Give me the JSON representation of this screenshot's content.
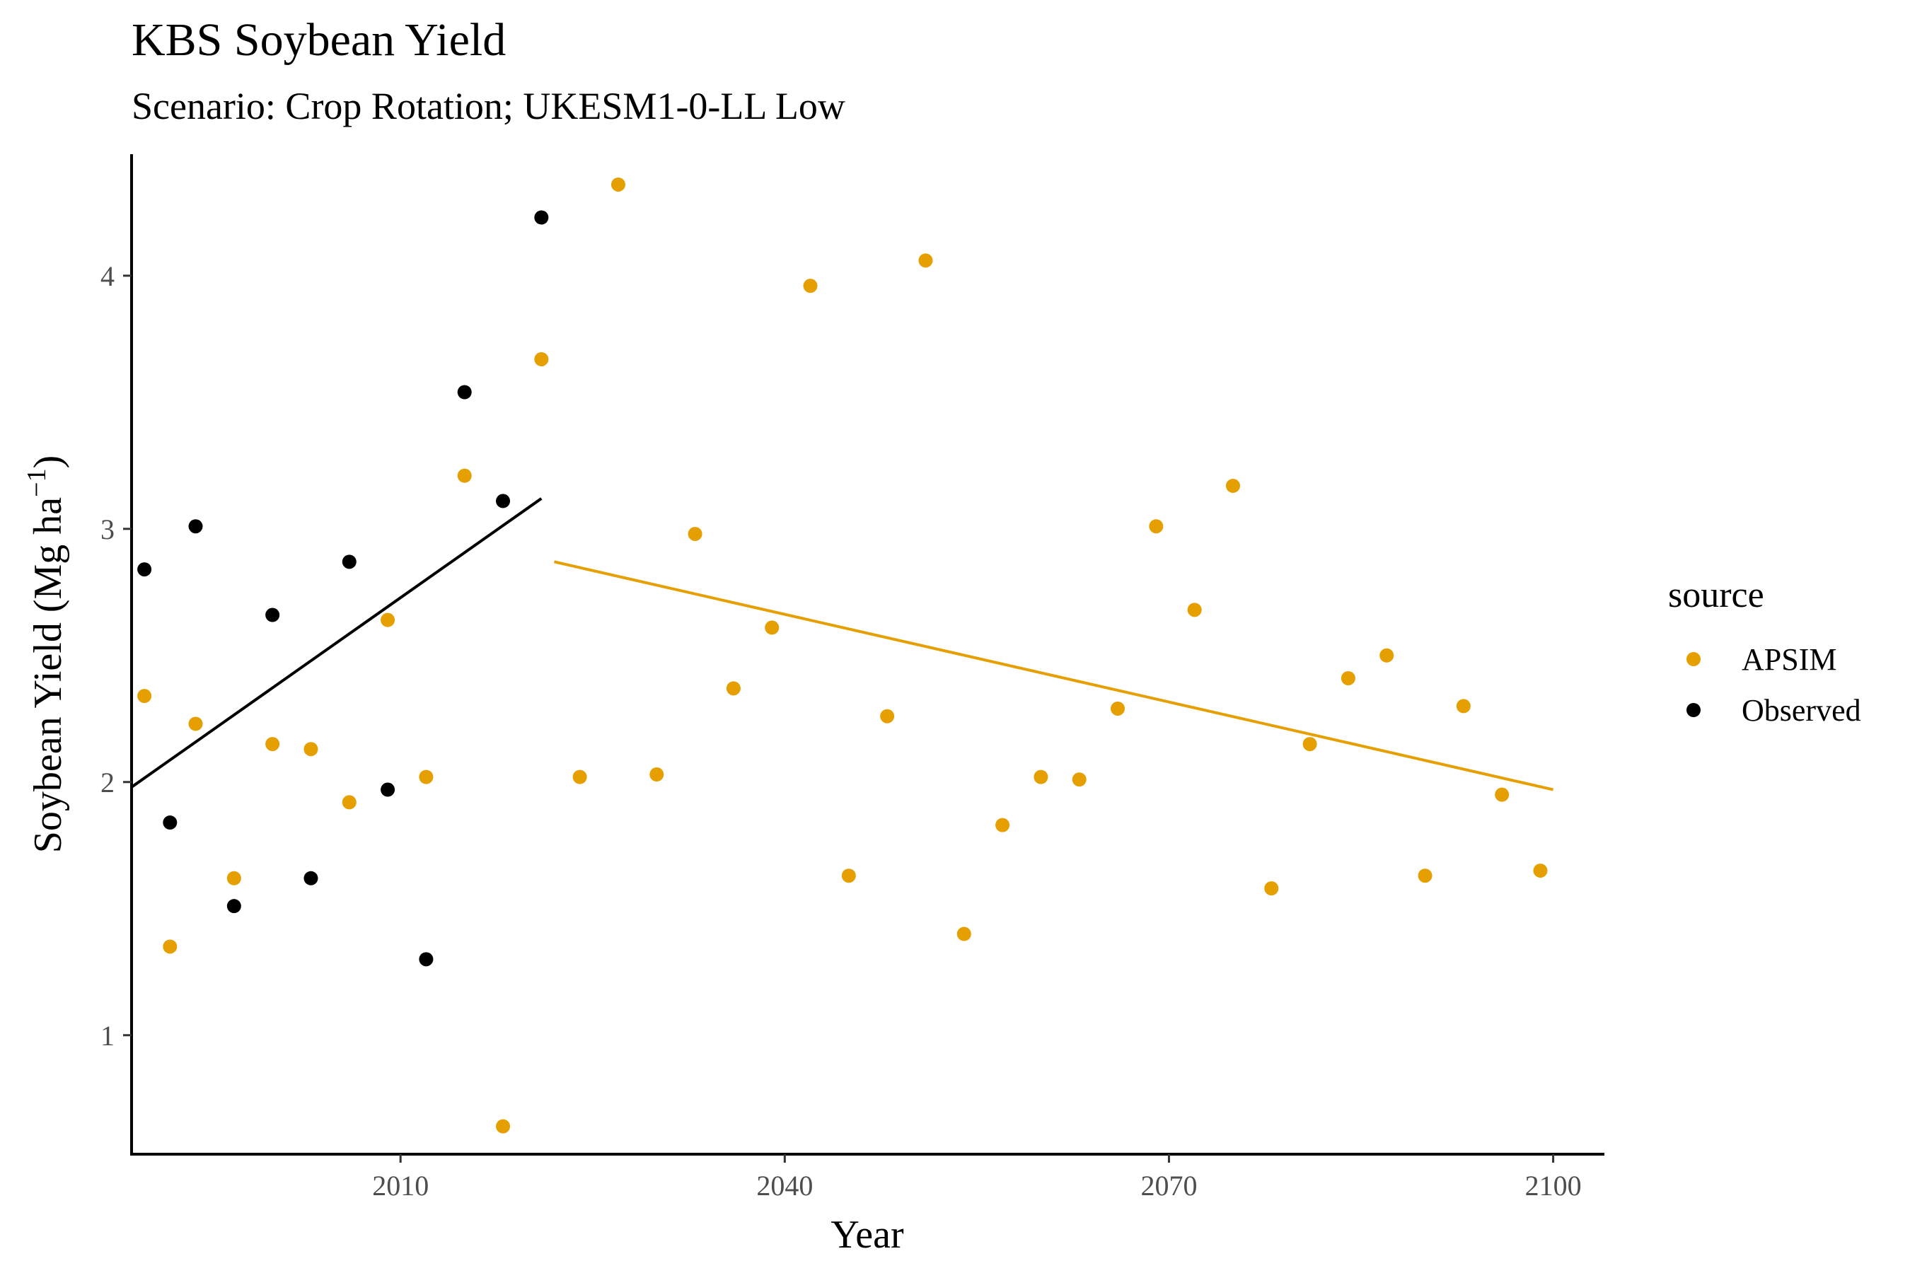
{
  "chart_data": {
    "type": "scatter",
    "title": "KBS Soybean Yield",
    "subtitle": "Scenario: Crop Rotation; UKESM1-0-LL Low",
    "xlabel": "Year",
    "ylabel": "Soybean Yield (Mg ha",
    "ylabel_sup": "−1",
    "ylabel_close": ")",
    "xlim": [
      1989,
      2104
    ],
    "ylim": [
      0.53,
      4.48
    ],
    "xticks": [
      2010,
      2040,
      2070,
      2100
    ],
    "yticks": [
      1,
      2,
      3,
      4
    ],
    "grid": false,
    "legend": {
      "title": "source",
      "position": "right"
    },
    "series": [
      {
        "name": "APSIM",
        "color": "#E69F00",
        "points": [
          [
            1990,
            2.34
          ],
          [
            1992,
            1.35
          ],
          [
            1994,
            2.23
          ],
          [
            1997,
            1.62
          ],
          [
            2000,
            2.15
          ],
          [
            2003,
            2.13
          ],
          [
            2006,
            1.92
          ],
          [
            2009,
            2.64
          ],
          [
            2012,
            2.02
          ],
          [
            2015,
            3.21
          ],
          [
            2018,
            0.64
          ],
          [
            2021,
            3.67
          ],
          [
            2024,
            2.02
          ],
          [
            2027,
            4.36
          ],
          [
            2030,
            2.03
          ],
          [
            2033,
            2.98
          ],
          [
            2036,
            2.37
          ],
          [
            2039,
            2.61
          ],
          [
            2042,
            3.96
          ],
          [
            2045,
            1.63
          ],
          [
            2048,
            2.26
          ],
          [
            2051,
            4.06
          ],
          [
            2054,
            1.4
          ],
          [
            2057,
            1.83
          ],
          [
            2060,
            2.02
          ],
          [
            2063,
            2.01
          ],
          [
            2066,
            2.29
          ],
          [
            2069,
            3.01
          ],
          [
            2072,
            2.68
          ],
          [
            2075,
            3.17
          ],
          [
            2078,
            1.58
          ],
          [
            2081,
            2.15
          ],
          [
            2084,
            2.41
          ],
          [
            2087,
            2.5
          ],
          [
            2090,
            1.63
          ],
          [
            2093,
            2.3
          ],
          [
            2096,
            1.95
          ],
          [
            2099,
            1.65
          ]
        ],
        "trend": [
          [
            2022,
            2.87
          ],
          [
            2100,
            1.97
          ]
        ]
      },
      {
        "name": "Observed",
        "color": "#000000",
        "points": [
          [
            1990,
            2.84
          ],
          [
            1992,
            1.84
          ],
          [
            1994,
            3.01
          ],
          [
            1997,
            1.51
          ],
          [
            2000,
            2.66
          ],
          [
            2003,
            1.62
          ],
          [
            2006,
            2.87
          ],
          [
            2009,
            1.97
          ],
          [
            2012,
            1.3
          ],
          [
            2015,
            3.54
          ],
          [
            2018,
            3.11
          ],
          [
            2021,
            4.23
          ]
        ],
        "trend": [
          [
            1989,
            1.98
          ],
          [
            2021,
            3.12
          ]
        ]
      }
    ]
  }
}
